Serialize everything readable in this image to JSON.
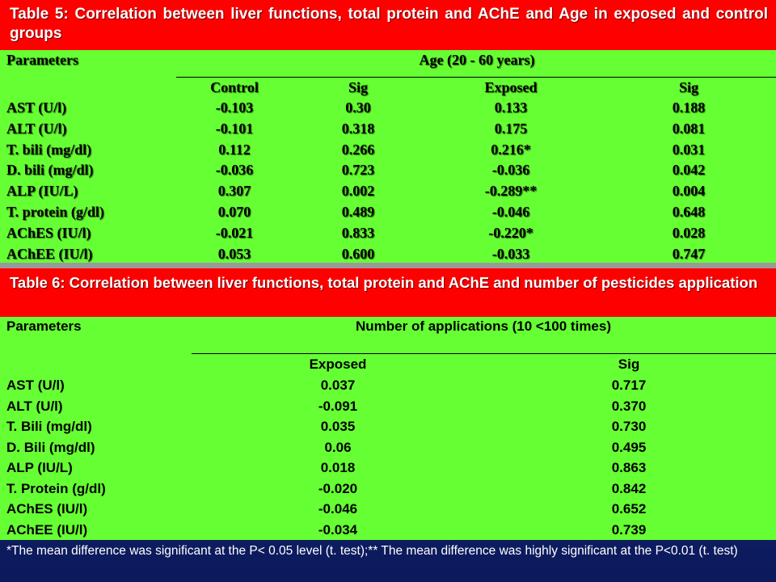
{
  "table_5": {
    "title": "Table 5: Correlation between liver functions, total protein and AChE and Age in exposed and control groups",
    "header": {
      "parameter": "Parameters",
      "group": "Age (20 - 60 years)",
      "columns": [
        "Control",
        "Sig",
        "Exposed",
        "Sig"
      ]
    },
    "rows": [
      [
        "AST (U/l)",
        "-0.103",
        "0.30",
        "0.133",
        "0.188"
      ],
      [
        "ALT (U/l)",
        "-0.101",
        "0.318",
        "0.175",
        "0.081"
      ],
      [
        "T. bili (mg/dl)",
        "0.112",
        "0.266",
        "0.216*",
        "0.031"
      ],
      [
        "D. bili  (mg/dl)",
        "-0.036",
        "0.723",
        "-0.036",
        "0.042"
      ],
      [
        "ALP (IU/L)",
        "0.307",
        "0.002",
        "-0.289**",
        "0.004"
      ],
      [
        "T. protein (g/dl)",
        "0.070",
        "0.489",
        "-0.046",
        "0.648"
      ],
      [
        "AChES (IU/l)",
        "-0.021",
        "0.833",
        "-0.220*",
        "0.028"
      ],
      [
        "AChEE (IU/l)",
        "0.053",
        "0.600",
        "-0.033",
        "0.747"
      ]
    ]
  },
  "table_6": {
    "title": "Table 6: Correlation between liver functions, total protein and AChE and number of pesticides application",
    "header": {
      "parameter": "Parameters",
      "group": "Number of applications  (10 <100 times)",
      "columns": [
        "Exposed",
        "Sig"
      ]
    },
    "rows": [
      [
        "AST (U/l)",
        "0.037",
        "0.717"
      ],
      [
        "ALT (U/l)",
        "-0.091",
        "0.370"
      ],
      [
        "T. Bili (mg/dl)",
        "0.035",
        "0.730"
      ],
      [
        "D. Bili  (mg/dl)",
        "0.06",
        "0.495"
      ],
      [
        "ALP (IU/L)",
        "0.018",
        "0.863"
      ],
      [
        "T. Protein (g/dl)",
        "-0.020",
        "0.842"
      ],
      [
        "AChES (IU/l)",
        "-0.046",
        "0.652"
      ],
      [
        "AChEE (IU/l)",
        "-0.034",
        "0.739"
      ]
    ]
  },
  "footnote": "*The mean difference was significant at the P< 0.05 level (t. test);** The mean difference was highly significant at the P<0.01 (t. test)"
}
